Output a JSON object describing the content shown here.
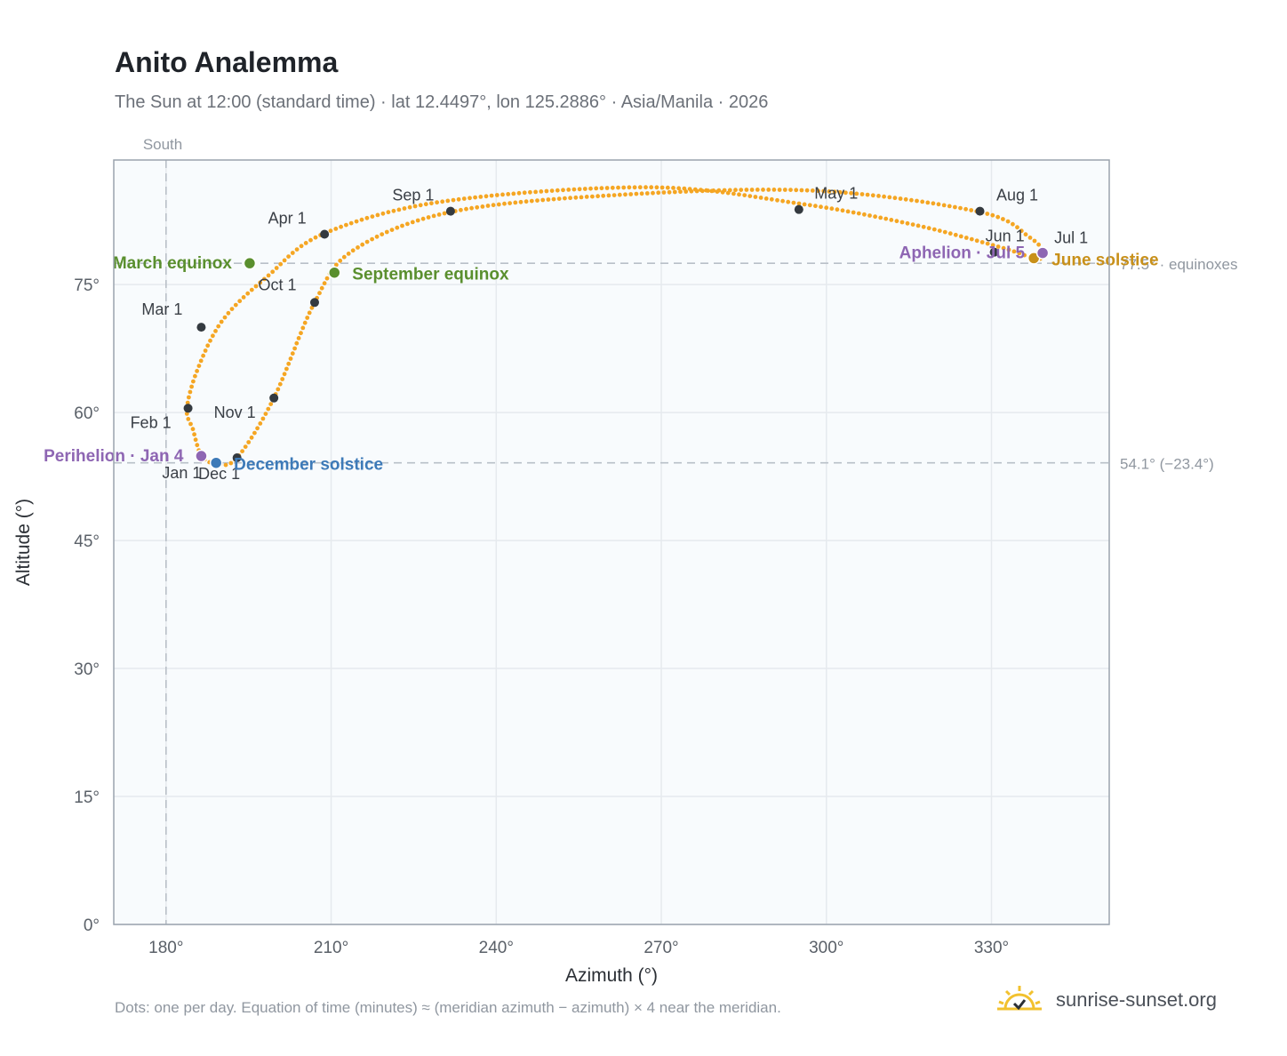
{
  "title": "Anito Analemma",
  "subtitle": "The Sun at 12:00 (standard time) · lat 12.4497°, lon 125.2886° · Asia/Manila · 2026",
  "footnote": "Dots: one per day. Equation of time (minutes) ≈ (meridian azimuth − azimuth) × 4 near the meridian.",
  "brand": {
    "name": "sunrise-sunset.org",
    "icon": "sunrise-logo-icon"
  },
  "colors": {
    "curve": "#f5a623",
    "month_marker": "#343a40",
    "equinox": "#5a8f2e",
    "december_solstice": "#3d7ab8",
    "june_solstice": "#c8901a",
    "perihelion_aphelion": "#8e66b3",
    "reference_line": "#b9c0c8",
    "plot_background": "#f8fbfd",
    "grid": "#e6eaee",
    "frame": "#9aa3ad"
  },
  "chart_data": {
    "type": "scatter",
    "xlabel": "Azimuth (°)",
    "ylabel": "Altitude (°)",
    "xlim": [
      170.5,
      351.4
    ],
    "ylim": [
      0,
      89.6
    ],
    "xticks": [
      180,
      210,
      240,
      270,
      300,
      330
    ],
    "xtick_labels": [
      "180°",
      "210°",
      "240°",
      "270°",
      "300°",
      "330°"
    ],
    "yticks": [
      0,
      15,
      30,
      45,
      60,
      75
    ],
    "ytick_labels": [
      "0°",
      "15°",
      "30°",
      "45°",
      "60°",
      "75°"
    ],
    "grid": true,
    "legend": "none",
    "series": [
      {
        "marker": "dot-per-day",
        "x": [
          186.4,
          184.9,
          183.8,
          186.0,
          190.5,
          198.5,
          208.8,
          231.0,
          268.0,
          295.0,
          316.0,
          332.0,
          338.2,
          339.3,
          337.0,
          327.9,
          298.0,
          262.0,
          231.7,
          214.0,
          207.0,
          199.6,
          192.9,
          189.1,
          186.4
        ],
        "y": [
          55.0,
          58.0,
          60.5,
          65.5,
          71.0,
          76.0,
          81.0,
          84.8,
          86.4,
          84.5,
          82.0,
          79.3,
          78.0,
          78.8,
          80.5,
          83.5,
          86.0,
          85.5,
          83.5,
          79.0,
          72.9,
          61.7,
          54.7,
          54.0,
          55.0
        ]
      }
    ],
    "month_markers": [
      {
        "label": "Jan 1",
        "x": 186.4,
        "y": 55.0
      },
      {
        "label": "Feb 1",
        "x": 184.0,
        "y": 60.5
      },
      {
        "label": "Mar 1",
        "x": 186.4,
        "y": 70.0
      },
      {
        "label": "Apr 1",
        "x": 208.8,
        "y": 80.9
      },
      {
        "label": "May 1",
        "x": 295.0,
        "y": 83.8
      },
      {
        "label": "Jun 1",
        "x": 330.5,
        "y": 78.8
      },
      {
        "label": "Jul 1",
        "x": 339.3,
        "y": 78.8
      },
      {
        "label": "Aug 1",
        "x": 327.9,
        "y": 83.6
      },
      {
        "label": "Sep 1",
        "x": 231.7,
        "y": 83.6
      },
      {
        "label": "Oct 1",
        "x": 207.0,
        "y": 72.9
      },
      {
        "label": "Nov 1",
        "x": 199.6,
        "y": 61.7
      },
      {
        "label": "Dec 1",
        "x": 192.9,
        "y": 54.7
      }
    ],
    "events": [
      {
        "label": "March equinox",
        "x": 195.2,
        "y": 77.5,
        "kind": "equinox"
      },
      {
        "label": "September equinox",
        "x": 210.6,
        "y": 76.4,
        "kind": "equinox"
      },
      {
        "label": "December solstice",
        "x": 189.1,
        "y": 54.1,
        "kind": "december_solstice"
      },
      {
        "label": "June solstice",
        "x": 337.7,
        "y": 78.1,
        "kind": "june_solstice"
      },
      {
        "label": "Perihelion · Jan 4",
        "x": 186.4,
        "y": 54.9,
        "kind": "perihelion_aphelion"
      },
      {
        "label": "Aphelion · Jul 5",
        "x": 339.3,
        "y": 78.7,
        "kind": "perihelion_aphelion"
      }
    ],
    "reference_lines": [
      {
        "axis": "y",
        "value": 77.5,
        "label": "77.5° · equinoxes"
      },
      {
        "axis": "y",
        "value": 54.1,
        "label": "54.1° (−23.4°)"
      },
      {
        "axis": "x",
        "value": 180,
        "label": "South"
      }
    ]
  }
}
